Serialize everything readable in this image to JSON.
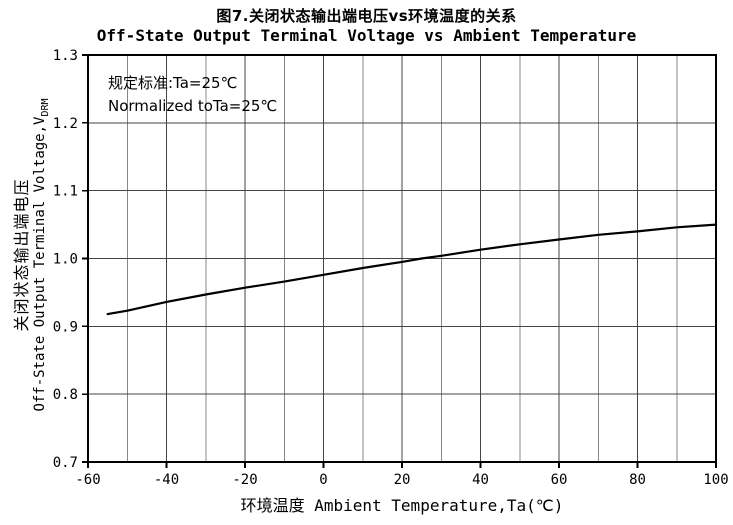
{
  "figure": {
    "title_cn": "图7.关闭状态输出端电压vs环境温度的关系",
    "title_en": "Off-State Output Terminal Voltage vs Ambient Temperature",
    "annotation_line1": "规定标准:Ta=25℃",
    "annotation_line2": "Normalized toTa=25℃"
  },
  "chart_data": {
    "type": "line",
    "title": "Off-State Output Terminal Voltage vs Ambient Temperature",
    "xlabel": "环境温度 Ambient Temperature,Ta(℃)",
    "ylabel_cn": "关闭状态输出端电压",
    "ylabel_en": "Off-State Output Terminal Voltage,V",
    "ylabel_sub": "DRM",
    "xlim": [
      -60,
      100
    ],
    "ylim": [
      0.7,
      1.3
    ],
    "xticks": [
      -60,
      -40,
      -20,
      0,
      20,
      40,
      60,
      80,
      100
    ],
    "xtick_labels": [
      "-60",
      "-40",
      "-20",
      "0",
      "20",
      "40",
      "60",
      "80",
      "100"
    ],
    "yticks": [
      0.7,
      0.8,
      0.9,
      1.0,
      1.1,
      1.2,
      1.3
    ],
    "ytick_labels": [
      "0.7",
      "0.8",
      "0.9",
      "1.0",
      "1.1",
      "1.2",
      "1.3"
    ],
    "x_minor_step": 10,
    "grid": true,
    "legend": "none",
    "series": [
      {
        "name": "VDRM vs Ta (normalized)",
        "x": [
          -55,
          -50,
          -40,
          -30,
          -20,
          -10,
          0,
          10,
          20,
          25,
          30,
          40,
          50,
          60,
          70,
          80,
          90,
          100
        ],
        "y": [
          0.918,
          0.923,
          0.936,
          0.947,
          0.957,
          0.966,
          0.976,
          0.986,
          0.995,
          1.0,
          1.004,
          1.013,
          1.021,
          1.028,
          1.035,
          1.04,
          1.046,
          1.05
        ]
      }
    ]
  }
}
